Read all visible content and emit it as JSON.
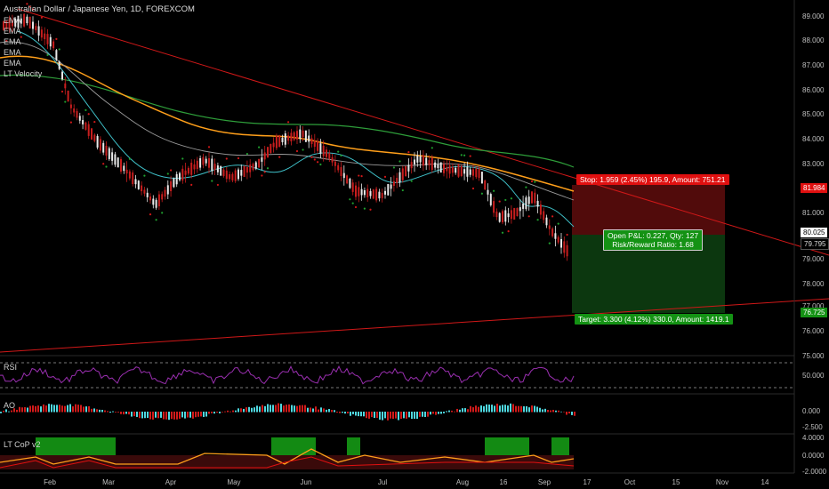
{
  "title": "Australian Dollar / Japanese Yen, 1D, FOREXCOM",
  "legend": [
    "EMA",
    "EMA",
    "EMA",
    "EMA",
    "EMA",
    "LT Velocity"
  ],
  "price_axis": [
    "89.000",
    "88.000",
    "87.000",
    "86.000",
    "85.000",
    "84.000",
    "83.000",
    "81.000",
    "79.000",
    "78.000",
    "77.000",
    "76.000",
    "75.000"
  ],
  "price_tags": {
    "stop_level": "81.984",
    "current_1": "80.025",
    "current_2": "79.795",
    "target_level": "76.725"
  },
  "position": {
    "stop_text": "Stop: 1.959 (2.45%) 195.9, Amount: 751.21",
    "pnl_line1": "Open P&L: 0.227, Qty: 127",
    "pnl_line2": "Risk/Reward Ratio: 1.68",
    "target_text": "Target: 3.300 (4.12%) 330.0, Amount: 1419.1"
  },
  "panes": {
    "rsi": {
      "label": "RSI",
      "axis": [
        "50.000"
      ]
    },
    "ao": {
      "label": "AO",
      "axis": [
        "0.000",
        "-2.500"
      ]
    },
    "cop": {
      "label": "LT CoP v2",
      "axis": [
        "4.0000",
        "0.0000",
        "-2.0000"
      ]
    }
  },
  "time_axis": [
    "Feb",
    "Mar",
    "Apr",
    "May",
    "Jun",
    "Jul",
    "Aug",
    "16",
    "Sep",
    "17",
    "Oct",
    "15",
    "Nov",
    "14"
  ],
  "colors": {
    "up": "#e8e8e8",
    "down": "#c81e1e",
    "ema_orange": "#ff9f1a",
    "ema_green": "#2e9e3a",
    "ema_cyan": "#3fc1c9",
    "trend": "#d01818",
    "stop_bg": "#e01010",
    "target_bg": "#149214",
    "rsi": "#9a2fb0",
    "ao_up": "#4fd8e0",
    "ao_down": "#d11a1a"
  }
}
